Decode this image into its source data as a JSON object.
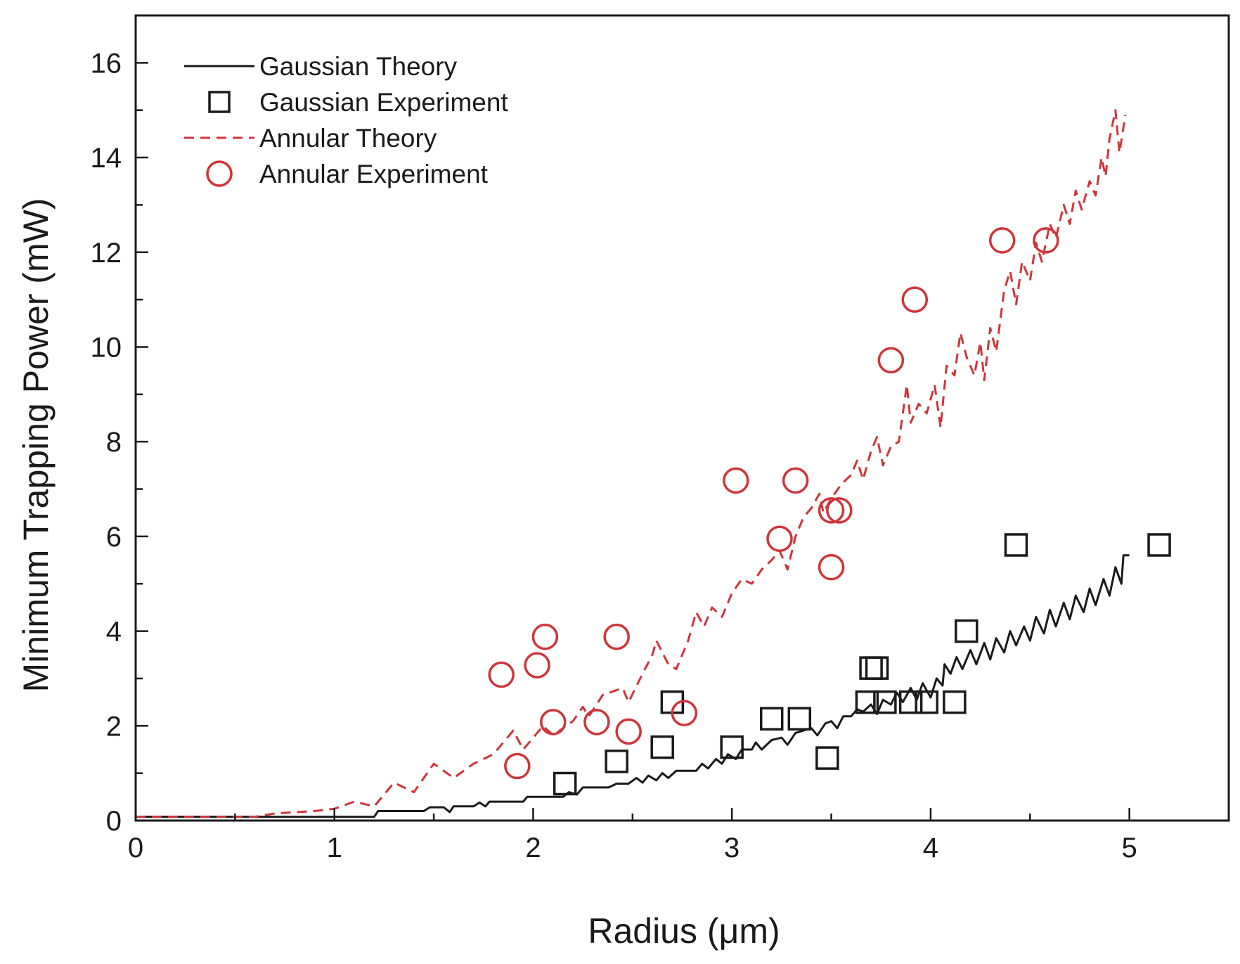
{
  "chart_data": {
    "type": "line",
    "title": "",
    "xlabel": "Radius (μm)",
    "ylabel": "Minimum Trapping Power (mW)",
    "xlim": [
      0,
      5.5
    ],
    "ylim": [
      0,
      17
    ],
    "xticks": [
      0,
      1,
      2,
      3,
      4,
      5
    ],
    "xtick_labels": [
      "0",
      "1",
      "2",
      "3",
      "4",
      "5"
    ],
    "yticks": [
      0,
      2,
      4,
      6,
      8,
      10,
      12,
      14,
      16
    ],
    "ytick_labels": [
      "0",
      "2",
      "4",
      "6",
      "8",
      "10",
      "12",
      "14",
      "16"
    ],
    "legend_position": "top-left",
    "grid": false,
    "series": [
      {
        "name": "Gaussian Theory",
        "kind": "line",
        "style": "solid",
        "color": "#1a1a1a",
        "points": [
          [
            0.0,
            0.08
          ],
          [
            0.6,
            0.08
          ],
          [
            1.2,
            0.08
          ],
          [
            1.22,
            0.2
          ],
          [
            1.45,
            0.2
          ],
          [
            1.48,
            0.28
          ],
          [
            1.55,
            0.28
          ],
          [
            1.58,
            0.18
          ],
          [
            1.6,
            0.3
          ],
          [
            1.7,
            0.3
          ],
          [
            1.73,
            0.38
          ],
          [
            1.76,
            0.3
          ],
          [
            1.78,
            0.4
          ],
          [
            1.95,
            0.4
          ],
          [
            1.97,
            0.5
          ],
          [
            2.15,
            0.5
          ],
          [
            2.18,
            0.6
          ],
          [
            2.22,
            0.55
          ],
          [
            2.25,
            0.7
          ],
          [
            2.38,
            0.7
          ],
          [
            2.42,
            0.78
          ],
          [
            2.48,
            0.78
          ],
          [
            2.52,
            0.9
          ],
          [
            2.55,
            0.8
          ],
          [
            2.58,
            0.95
          ],
          [
            2.62,
            0.85
          ],
          [
            2.65,
            1.0
          ],
          [
            2.68,
            0.9
          ],
          [
            2.72,
            1.05
          ],
          [
            2.82,
            1.05
          ],
          [
            2.85,
            1.2
          ],
          [
            2.88,
            1.1
          ],
          [
            2.92,
            1.3
          ],
          [
            2.95,
            1.2
          ],
          [
            2.98,
            1.4
          ],
          [
            3.02,
            1.3
          ],
          [
            3.05,
            1.5
          ],
          [
            3.1,
            1.5
          ],
          [
            3.12,
            1.65
          ],
          [
            3.15,
            1.5
          ],
          [
            3.2,
            1.7
          ],
          [
            3.25,
            1.75
          ],
          [
            3.28,
            1.6
          ],
          [
            3.32,
            1.85
          ],
          [
            3.36,
            1.9
          ],
          [
            3.4,
            1.95
          ],
          [
            3.43,
            1.8
          ],
          [
            3.47,
            2.05
          ],
          [
            3.5,
            2.1
          ],
          [
            3.53,
            1.95
          ],
          [
            3.56,
            2.2
          ],
          [
            3.6,
            2.2
          ],
          [
            3.63,
            2.35
          ],
          [
            3.66,
            2.3
          ],
          [
            3.7,
            2.45
          ],
          [
            3.73,
            2.25
          ],
          [
            3.76,
            2.55
          ],
          [
            3.8,
            2.45
          ],
          [
            3.83,
            2.7
          ],
          [
            3.86,
            2.5
          ],
          [
            3.9,
            2.8
          ],
          [
            3.93,
            2.55
          ],
          [
            3.96,
            2.9
          ],
          [
            4.0,
            2.6
          ],
          [
            4.03,
            3.0
          ],
          [
            4.06,
            2.85
          ],
          [
            4.07,
            3.3
          ],
          [
            4.1,
            3.1
          ],
          [
            4.13,
            3.45
          ],
          [
            4.16,
            3.2
          ],
          [
            4.2,
            3.6
          ],
          [
            4.23,
            3.3
          ],
          [
            4.27,
            3.75
          ],
          [
            4.3,
            3.4
          ],
          [
            4.33,
            3.85
          ],
          [
            4.37,
            3.55
          ],
          [
            4.4,
            4.0
          ],
          [
            4.43,
            3.7
          ],
          [
            4.47,
            4.1
          ],
          [
            4.5,
            3.8
          ],
          [
            4.53,
            4.3
          ],
          [
            4.57,
            3.95
          ],
          [
            4.6,
            4.45
          ],
          [
            4.63,
            4.1
          ],
          [
            4.67,
            4.6
          ],
          [
            4.7,
            4.25
          ],
          [
            4.73,
            4.75
          ],
          [
            4.77,
            4.4
          ],
          [
            4.8,
            4.9
          ],
          [
            4.83,
            4.55
          ],
          [
            4.87,
            5.1
          ],
          [
            4.9,
            4.75
          ],
          [
            4.93,
            5.35
          ],
          [
            4.96,
            5.0
          ],
          [
            4.97,
            5.6
          ],
          [
            5.0,
            5.6
          ]
        ]
      },
      {
        "name": "Gaussian Experiment",
        "kind": "scatter",
        "marker": "square",
        "color": "#1a1a1a",
        "points": [
          [
            2.16,
            0.78
          ],
          [
            2.42,
            1.25
          ],
          [
            2.65,
            1.55
          ],
          [
            2.7,
            2.5
          ],
          [
            3.0,
            1.55
          ],
          [
            3.2,
            2.15
          ],
          [
            3.34,
            2.15
          ],
          [
            3.48,
            1.32
          ],
          [
            3.68,
            2.5
          ],
          [
            3.7,
            3.22
          ],
          [
            3.73,
            3.22
          ],
          [
            3.77,
            2.5
          ],
          [
            3.9,
            2.5
          ],
          [
            3.98,
            2.5
          ],
          [
            4.12,
            2.5
          ],
          [
            4.18,
            4.0
          ],
          [
            4.43,
            5.82
          ],
          [
            5.15,
            5.82
          ]
        ]
      },
      {
        "name": "Annular Theory",
        "kind": "line",
        "style": "dashed",
        "color": "#d0343a",
        "points": [
          [
            0.0,
            0.08
          ],
          [
            0.6,
            0.08
          ],
          [
            0.7,
            0.15
          ],
          [
            0.9,
            0.2
          ],
          [
            1.0,
            0.25
          ],
          [
            1.1,
            0.4
          ],
          [
            1.2,
            0.3
          ],
          [
            1.3,
            0.8
          ],
          [
            1.4,
            0.6
          ],
          [
            1.5,
            1.2
          ],
          [
            1.6,
            0.9
          ],
          [
            1.7,
            1.2
          ],
          [
            1.8,
            1.4
          ],
          [
            1.9,
            1.9
          ],
          [
            1.95,
            1.5
          ],
          [
            2.05,
            2.0
          ],
          [
            2.1,
            1.8
          ],
          [
            2.2,
            2.1
          ],
          [
            2.25,
            2.4
          ],
          [
            2.28,
            2.2
          ],
          [
            2.35,
            2.65
          ],
          [
            2.45,
            2.8
          ],
          [
            2.48,
            2.5
          ],
          [
            2.55,
            3.1
          ],
          [
            2.6,
            3.5
          ],
          [
            2.62,
            3.8
          ],
          [
            2.68,
            3.3
          ],
          [
            2.72,
            3.2
          ],
          [
            2.78,
            3.8
          ],
          [
            2.82,
            4.4
          ],
          [
            2.86,
            4.1
          ],
          [
            2.9,
            4.5
          ],
          [
            2.95,
            4.3
          ],
          [
            3.0,
            4.8
          ],
          [
            3.05,
            5.1
          ],
          [
            3.1,
            5.0
          ],
          [
            3.15,
            5.3
          ],
          [
            3.2,
            5.5
          ],
          [
            3.24,
            5.7
          ],
          [
            3.28,
            5.3
          ],
          [
            3.32,
            6.0
          ],
          [
            3.36,
            6.4
          ],
          [
            3.4,
            6.6
          ],
          [
            3.44,
            6.9
          ],
          [
            3.46,
            6.5
          ],
          [
            3.5,
            6.8
          ],
          [
            3.55,
            7.1
          ],
          [
            3.6,
            7.3
          ],
          [
            3.63,
            7.6
          ],
          [
            3.66,
            7.2
          ],
          [
            3.7,
            7.8
          ],
          [
            3.73,
            8.1
          ],
          [
            3.76,
            7.5
          ],
          [
            3.8,
            7.9
          ],
          [
            3.84,
            8.0
          ],
          [
            3.88,
            9.2
          ],
          [
            3.9,
            8.4
          ],
          [
            3.94,
            8.8
          ],
          [
            3.98,
            8.6
          ],
          [
            4.02,
            9.2
          ],
          [
            4.05,
            8.3
          ],
          [
            4.08,
            9.6
          ],
          [
            4.12,
            9.4
          ],
          [
            4.15,
            10.3
          ],
          [
            4.18,
            9.8
          ],
          [
            4.22,
            9.4
          ],
          [
            4.25,
            10.1
          ],
          [
            4.27,
            9.3
          ],
          [
            4.3,
            10.4
          ],
          [
            4.33,
            9.9
          ],
          [
            4.37,
            11.2
          ],
          [
            4.4,
            11.6
          ],
          [
            4.43,
            10.9
          ],
          [
            4.46,
            11.8
          ],
          [
            4.5,
            11.4
          ],
          [
            4.53,
            12.2
          ],
          [
            4.56,
            11.8
          ],
          [
            4.6,
            12.6
          ],
          [
            4.63,
            12.3
          ],
          [
            4.67,
            13.0
          ],
          [
            4.7,
            12.6
          ],
          [
            4.73,
            13.3
          ],
          [
            4.76,
            12.9
          ],
          [
            4.8,
            13.5
          ],
          [
            4.83,
            13.2
          ],
          [
            4.86,
            14.0
          ],
          [
            4.88,
            13.6
          ],
          [
            4.9,
            14.4
          ],
          [
            4.93,
            15.0
          ],
          [
            4.95,
            14.1
          ],
          [
            4.98,
            14.9
          ]
        ]
      },
      {
        "name": "Annular Experiment",
        "kind": "scatter",
        "marker": "circle",
        "color": "#d0343a",
        "points": [
          [
            1.84,
            3.08
          ],
          [
            1.92,
            1.15
          ],
          [
            2.02,
            3.28
          ],
          [
            2.06,
            3.88
          ],
          [
            2.1,
            2.08
          ],
          [
            2.32,
            2.08
          ],
          [
            2.42,
            3.88
          ],
          [
            2.48,
            1.88
          ],
          [
            2.76,
            2.27
          ],
          [
            3.02,
            7.18
          ],
          [
            3.24,
            5.95
          ],
          [
            3.32,
            7.18
          ],
          [
            3.5,
            5.35
          ],
          [
            3.5,
            6.55
          ],
          [
            3.54,
            6.55
          ],
          [
            3.8,
            9.72
          ],
          [
            3.92,
            11.0
          ],
          [
            4.36,
            12.25
          ],
          [
            4.58,
            12.25
          ]
        ]
      }
    ]
  }
}
